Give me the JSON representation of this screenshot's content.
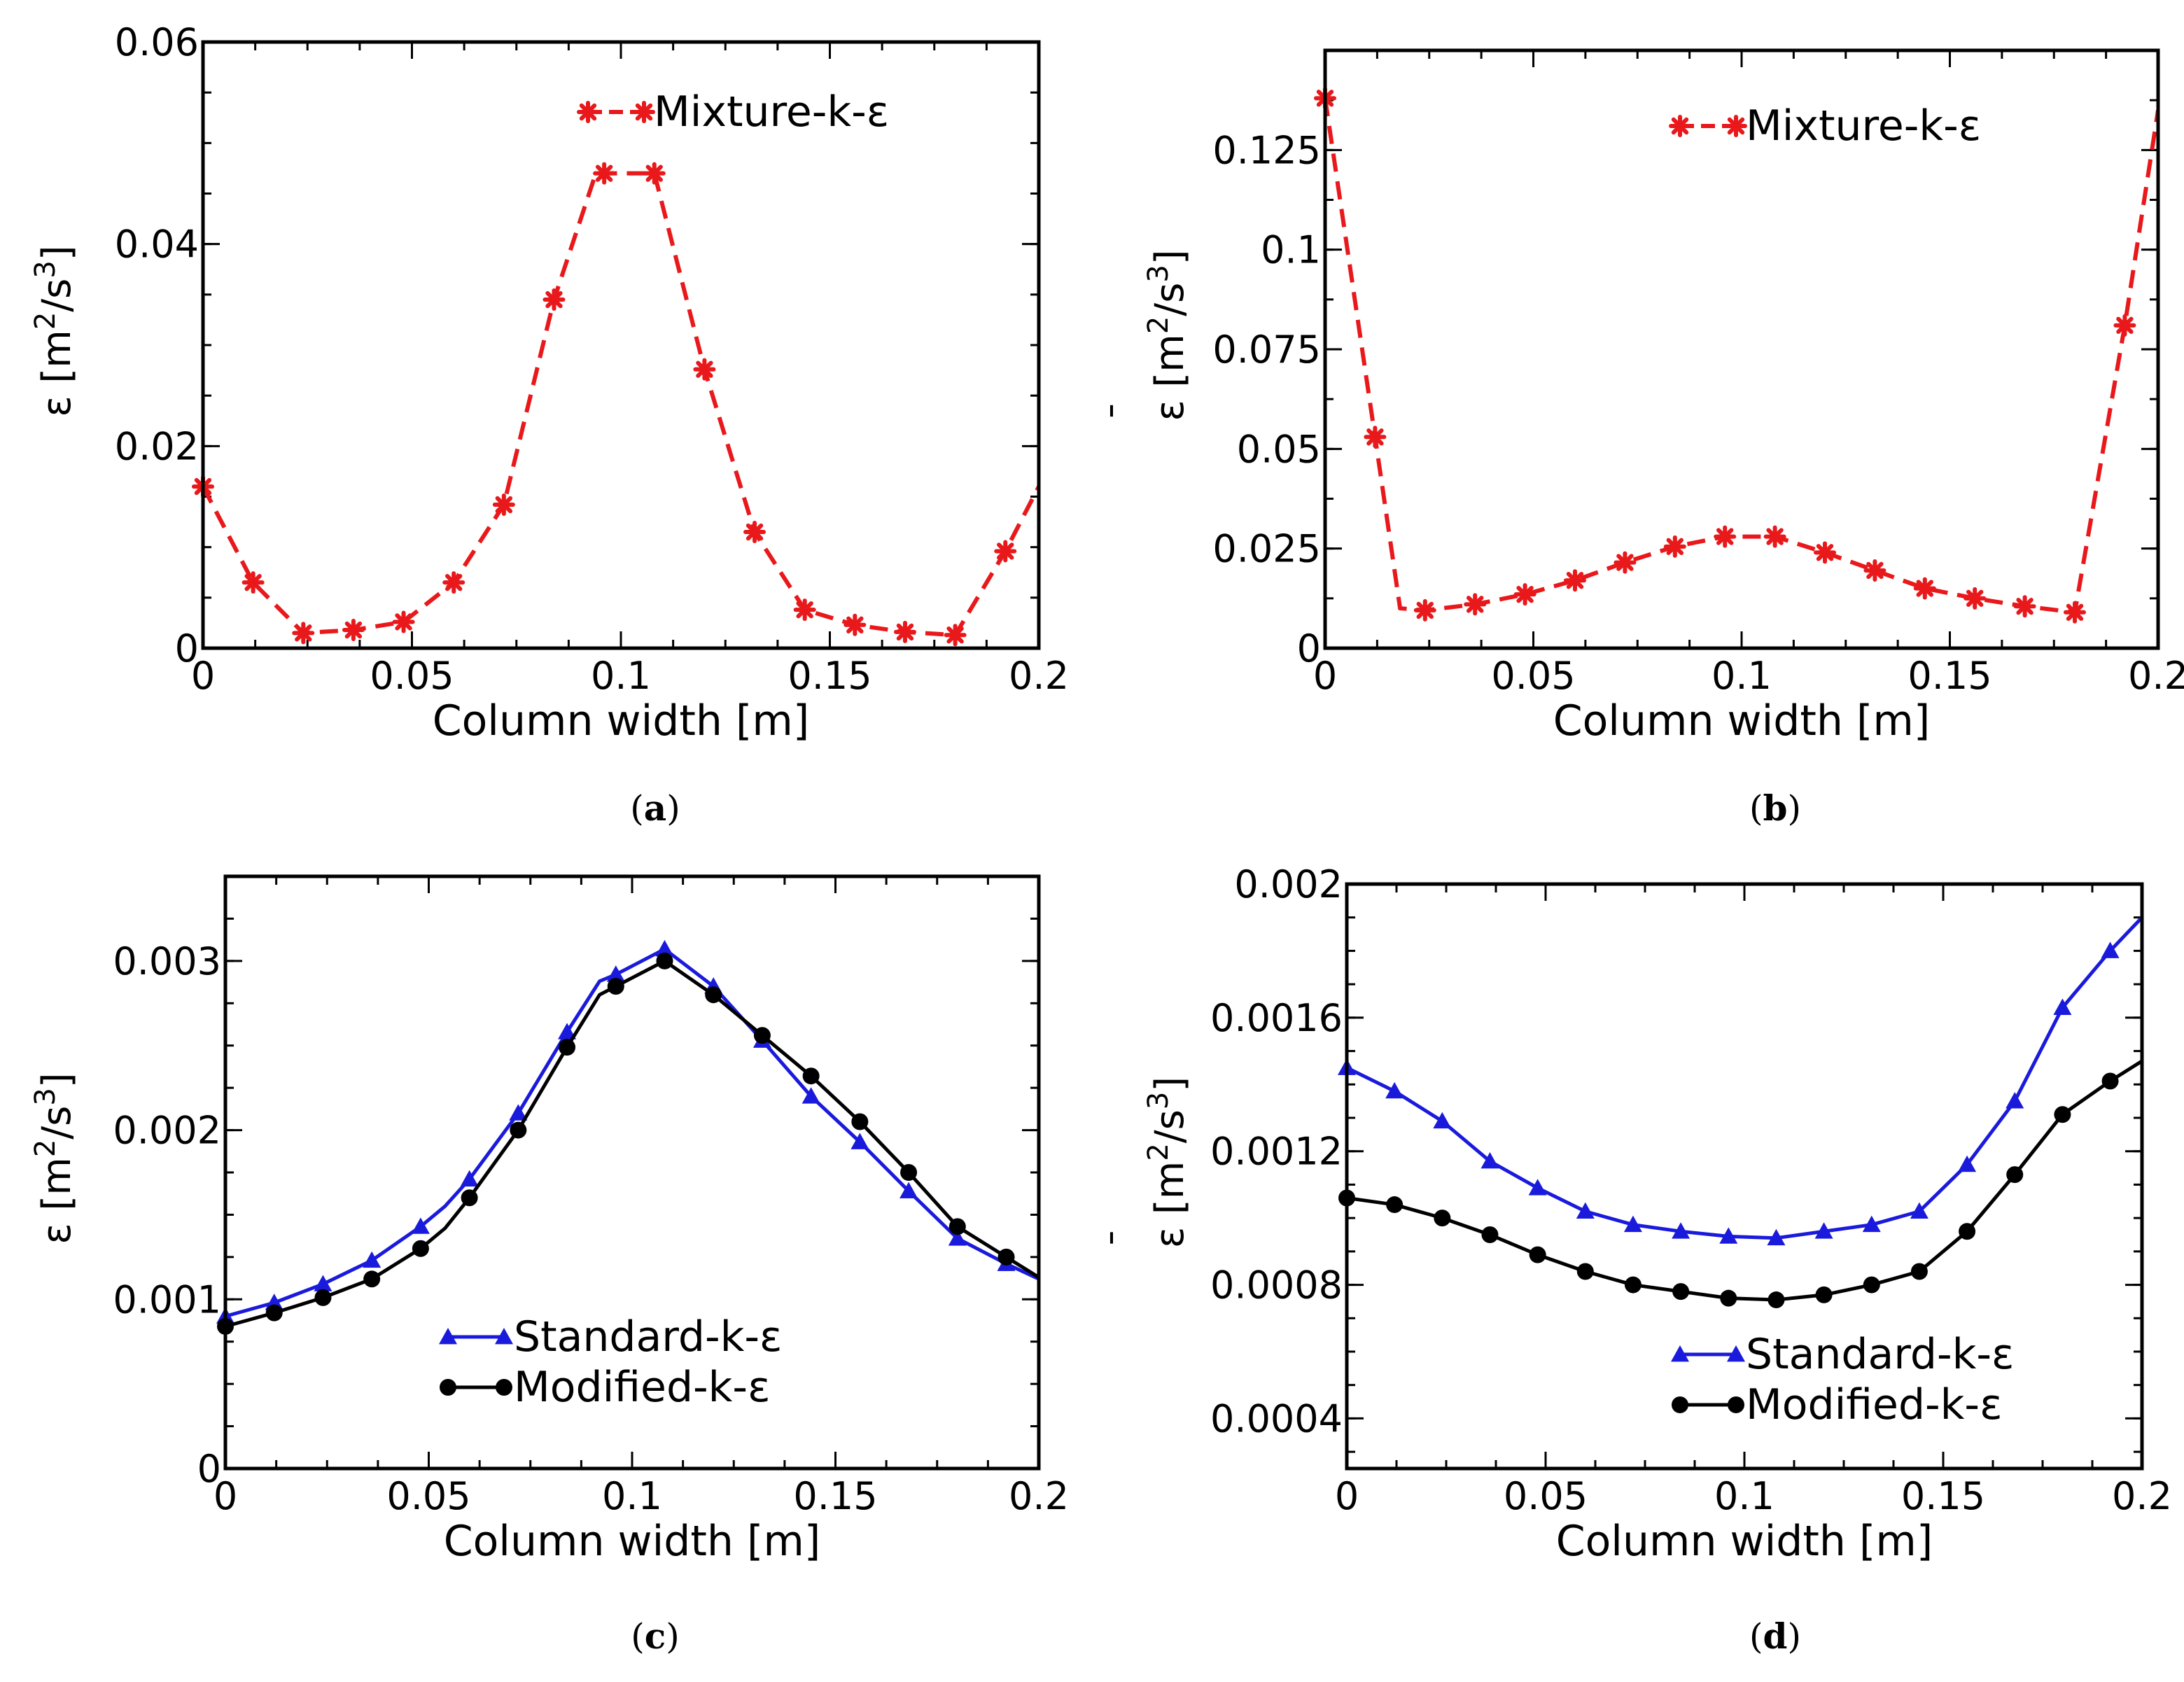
{
  "figure": {
    "panels": [
      {
        "id": "a",
        "caption_letter": "a"
      },
      {
        "id": "b",
        "caption_letter": "b"
      },
      {
        "id": "c",
        "caption_letter": "c"
      },
      {
        "id": "d",
        "caption_letter": "d"
      }
    ]
  },
  "colors": {
    "red": "#e8181b",
    "blue": "#1a1adc",
    "black": "#000000"
  },
  "chart_data": [
    {
      "id": "a",
      "type": "line",
      "title": "",
      "xlabel": "Column width [m]",
      "ylabel_bar": "¯",
      "ylabel_main": "ε [m",
      "ylabel_sup1": "2",
      "ylabel_mid": "/s",
      "ylabel_sup2": "3",
      "ylabel_end": "]",
      "xlim": [
        0,
        0.2
      ],
      "ylim": [
        0,
        0.06
      ],
      "xticks": [
        0,
        0.05,
        0.1,
        0.15,
        0.2
      ],
      "xtick_labels": [
        "0",
        "0.05",
        "0.1",
        "0.15",
        "0.2"
      ],
      "yticks": [
        0,
        0.02,
        0.04,
        0.06
      ],
      "ytick_labels": [
        "0",
        "0.02",
        "0.04",
        "0.06"
      ],
      "minor_x": 0.0125,
      "minor_y": 0.005,
      "legend_position": "top-right",
      "series": [
        {
          "name": "Mixture-k-ε",
          "color": "#e8181b",
          "style": "dashed",
          "marker": "star",
          "x": [
            0,
            0.012,
            0.024,
            0.036,
            0.048,
            0.06,
            0.072,
            0.084,
            0.094,
            0.096,
            0.108,
            0.12,
            0.132,
            0.144,
            0.156,
            0.168,
            0.18,
            0.192,
            0.2
          ],
          "y": [
            0.016,
            0.0065,
            0.0015,
            0.0018,
            0.0026,
            0.0065,
            0.0142,
            0.0345,
            0.047,
            0.047,
            0.047,
            0.0276,
            0.0115,
            0.0038,
            0.0023,
            0.0016,
            0.0013,
            0.0096,
            0.016
          ],
          "markers": [
            0,
            0.012,
            0.024,
            0.036,
            0.048,
            0.06,
            0.072,
            0.084,
            0.096,
            0.108,
            0.12,
            0.132,
            0.144,
            0.156,
            0.168,
            0.18,
            0.192
          ]
        }
      ]
    },
    {
      "id": "b",
      "type": "line",
      "title": "",
      "xlabel": "Column width [m]",
      "ylabel_bar": "¯",
      "ylabel_main": "ε [m",
      "ylabel_sup1": "2",
      "ylabel_mid": "/s",
      "ylabel_sup2": "3",
      "ylabel_end": "]",
      "xlim": [
        0,
        0.2
      ],
      "ylim": [
        0,
        0.15
      ],
      "xticks": [
        0,
        0.05,
        0.1,
        0.15,
        0.2
      ],
      "xtick_labels": [
        "0",
        "0.05",
        "0.1",
        "0.15",
        "0.2"
      ],
      "yticks": [
        0,
        0.025,
        0.05,
        0.075,
        0.1,
        0.125
      ],
      "ytick_labels": [
        "0",
        "0.025",
        "0.05",
        "0.075",
        "0.1",
        "0.125"
      ],
      "minor_x": 0.0125,
      "minor_y": 0.0125,
      "legend_position": "top-right",
      "series": [
        {
          "name": "Mixture-k-ε",
          "color": "#e8181b",
          "style": "dashed",
          "marker": "star",
          "x": [
            0,
            0.012,
            0.018,
            0.024,
            0.036,
            0.048,
            0.06,
            0.072,
            0.084,
            0.096,
            0.108,
            0.12,
            0.132,
            0.144,
            0.156,
            0.168,
            0.18,
            0.192,
            0.2
          ],
          "y": [
            0.138,
            0.053,
            0.01,
            0.0095,
            0.011,
            0.0135,
            0.017,
            0.0215,
            0.0255,
            0.028,
            0.028,
            0.024,
            0.0195,
            0.015,
            0.0125,
            0.0105,
            0.009,
            0.081,
            0.135
          ],
          "markers": [
            0,
            0.012,
            0.024,
            0.036,
            0.048,
            0.06,
            0.072,
            0.084,
            0.096,
            0.108,
            0.12,
            0.132,
            0.144,
            0.156,
            0.168,
            0.18,
            0.192
          ]
        }
      ]
    },
    {
      "id": "c",
      "type": "line",
      "title": "",
      "xlabel": "Column width [m]",
      "ylabel_bar": "¯",
      "ylabel_main": "ε [m",
      "ylabel_sup1": "2",
      "ylabel_mid": "/s",
      "ylabel_sup2": "3",
      "ylabel_end": "]",
      "xlim": [
        0,
        0.2
      ],
      "ylim": [
        0,
        0.0035
      ],
      "xticks": [
        0,
        0.05,
        0.1,
        0.15,
        0.2
      ],
      "xtick_labels": [
        "0",
        "0.05",
        "0.1",
        "0.15",
        "0.2"
      ],
      "yticks": [
        0,
        0.001,
        0.002,
        0.003
      ],
      "ytick_labels": [
        "0",
        "0.001",
        "0.002",
        "0.003"
      ],
      "minor_x": 0.0125,
      "minor_y": 0.00025,
      "legend_position": "bottom-center",
      "series": [
        {
          "name": "Standard-k-ε",
          "color": "#1a1adc",
          "style": "solid",
          "marker": "triangle",
          "x": [
            0,
            0.012,
            0.024,
            0.036,
            0.048,
            0.054,
            0.06,
            0.072,
            0.084,
            0.092,
            0.096,
            0.108,
            0.12,
            0.132,
            0.144,
            0.156,
            0.168,
            0.18,
            0.192,
            0.2
          ],
          "y": [
            0.0009,
            0.00098,
            0.00109,
            0.00123,
            0.00143,
            0.00155,
            0.00171,
            0.0021,
            0.00258,
            0.00288,
            0.00292,
            0.00307,
            0.00285,
            0.00253,
            0.0022,
            0.00193,
            0.00164,
            0.00136,
            0.00121,
            0.00112
          ],
          "markers": [
            0,
            0.012,
            0.024,
            0.036,
            0.048,
            0.06,
            0.072,
            0.084,
            0.096,
            0.108,
            0.12,
            0.132,
            0.144,
            0.156,
            0.168,
            0.18,
            0.192
          ]
        },
        {
          "name": "Modified-k-ε",
          "color": "#000000",
          "style": "solid",
          "marker": "circle",
          "x": [
            0,
            0.012,
            0.024,
            0.036,
            0.048,
            0.054,
            0.06,
            0.072,
            0.084,
            0.092,
            0.096,
            0.108,
            0.12,
            0.132,
            0.144,
            0.156,
            0.168,
            0.18,
            0.192,
            0.2
          ],
          "y": [
            0.00084,
            0.00092,
            0.00101,
            0.00112,
            0.0013,
            0.00142,
            0.0016,
            0.002,
            0.00249,
            0.0028,
            0.00285,
            0.003,
            0.0028,
            0.00256,
            0.00232,
            0.00205,
            0.00175,
            0.00143,
            0.00125,
            0.00113
          ],
          "markers": [
            0,
            0.012,
            0.024,
            0.036,
            0.048,
            0.06,
            0.072,
            0.084,
            0.096,
            0.108,
            0.12,
            0.132,
            0.144,
            0.156,
            0.168,
            0.18,
            0.192
          ]
        }
      ]
    },
    {
      "id": "d",
      "type": "line",
      "title": "",
      "xlabel": "Column width [m]",
      "ylabel_bar": "¯",
      "ylabel_main": "ε [m",
      "ylabel_sup1": "2",
      "ylabel_mid": "/s",
      "ylabel_sup2": "3",
      "ylabel_end": "]",
      "xlim": [
        0,
        0.2
      ],
      "ylim": [
        0.00025,
        0.002
      ],
      "xticks": [
        0,
        0.05,
        0.1,
        0.15,
        0.2
      ],
      "xtick_labels": [
        "0",
        "0.05",
        "0.1",
        "0.15",
        "0.2"
      ],
      "yticks": [
        0.0004,
        0.0008,
        0.0012,
        0.0016,
        0.002
      ],
      "ytick_labels": [
        "0.0004",
        "0.0008",
        "0.0012",
        "0.0016",
        "0.002"
      ],
      "minor_x": 0.0125,
      "minor_y": 0.0001,
      "legend_position": "bottom-right",
      "series": [
        {
          "name": "Standard-k-ε",
          "color": "#1a1adc",
          "style": "solid",
          "marker": "triangle",
          "x": [
            0,
            0.012,
            0.024,
            0.036,
            0.048,
            0.06,
            0.072,
            0.084,
            0.096,
            0.108,
            0.12,
            0.132,
            0.144,
            0.156,
            0.168,
            0.18,
            0.192,
            0.2
          ],
          "y": [
            0.00145,
            0.00138,
            0.00129,
            0.00117,
            0.00109,
            0.00102,
            0.00098,
            0.00096,
            0.000945,
            0.00094,
            0.00096,
            0.00098,
            0.00102,
            0.00116,
            0.00135,
            0.00163,
            0.0018,
            0.0019
          ],
          "markers": [
            0,
            0.012,
            0.024,
            0.036,
            0.048,
            0.06,
            0.072,
            0.084,
            0.096,
            0.108,
            0.12,
            0.132,
            0.144,
            0.156,
            0.168,
            0.18,
            0.192
          ]
        },
        {
          "name": "Modified-k-ε",
          "color": "#000000",
          "style": "solid",
          "marker": "circle",
          "x": [
            0,
            0.012,
            0.024,
            0.036,
            0.048,
            0.06,
            0.072,
            0.084,
            0.096,
            0.108,
            0.12,
            0.132,
            0.144,
            0.156,
            0.168,
            0.18,
            0.192,
            0.2
          ],
          "y": [
            0.00106,
            0.00104,
            0.001,
            0.00095,
            0.00089,
            0.00084,
            0.0008,
            0.00078,
            0.00076,
            0.000755,
            0.00077,
            0.0008,
            0.00084,
            0.00096,
            0.00113,
            0.00131,
            0.00141,
            0.00147
          ],
          "markers": [
            0,
            0.012,
            0.024,
            0.036,
            0.048,
            0.06,
            0.072,
            0.084,
            0.096,
            0.108,
            0.12,
            0.132,
            0.144,
            0.156,
            0.168,
            0.18,
            0.192
          ]
        }
      ]
    }
  ]
}
